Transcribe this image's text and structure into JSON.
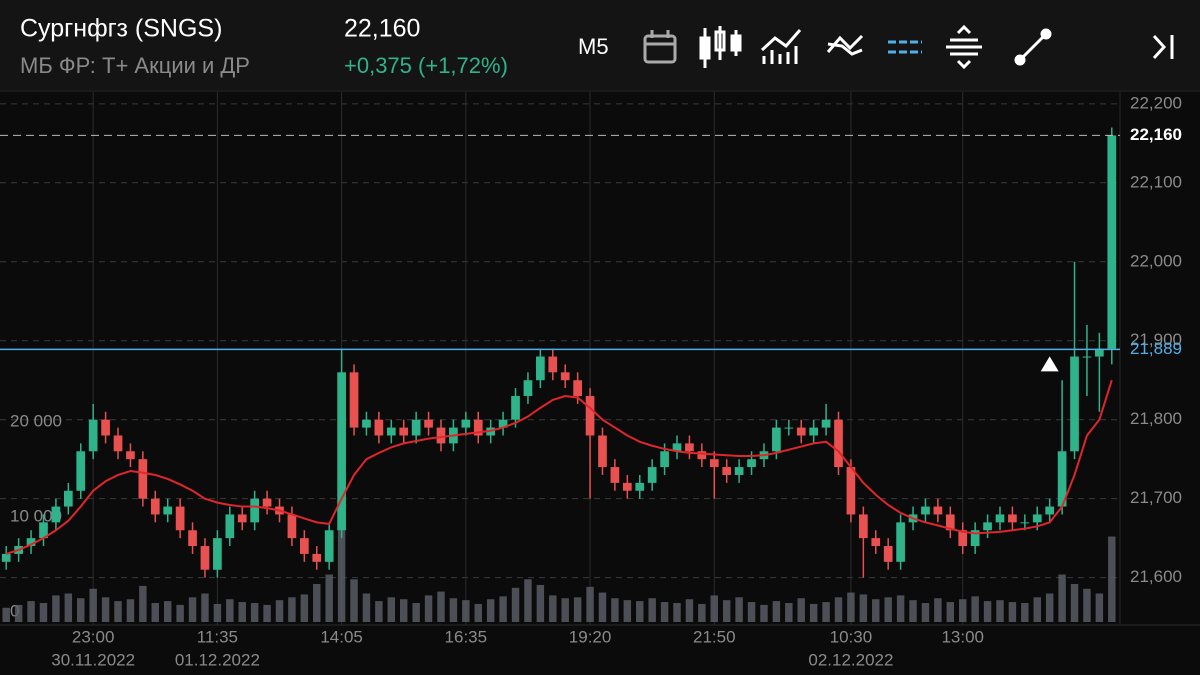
{
  "header": {
    "title": "Сургнфгз (SNGS)",
    "subtitle": "МБ ФР: Т+ Акции и ДР",
    "price": "22,160",
    "change": "+0,375 (+1,72%)",
    "timeframe": "М5"
  },
  "chart_data": {
    "type": "candlestick",
    "categories": [
      null,
      null,
      null,
      null,
      null,
      null,
      null,
      "23:00",
      null,
      null,
      null,
      null,
      null,
      null,
      null,
      null,
      null,
      "11:35",
      null,
      null,
      null,
      null,
      null,
      null,
      null,
      null,
      null,
      "14:05",
      null,
      null,
      null,
      null,
      null,
      null,
      null,
      null,
      null,
      "16:35",
      null,
      null,
      null,
      null,
      null,
      null,
      null,
      null,
      null,
      "19:20",
      null,
      null,
      null,
      null,
      null,
      null,
      null,
      null,
      null,
      "21:50",
      null,
      null,
      null,
      null,
      null,
      null,
      null,
      null,
      null,
      null,
      "10:30",
      null,
      null,
      null,
      null,
      null,
      null,
      null,
      null,
      "13:00",
      null,
      null,
      null,
      null,
      null,
      null,
      null,
      null,
      null,
      null,
      null
    ],
    "dates": [
      null,
      null,
      null,
      null,
      null,
      null,
      null,
      "30.11.2022",
      null,
      null,
      null,
      null,
      null,
      null,
      null,
      null,
      null,
      "01.12.2022",
      null,
      null,
      null,
      null,
      null,
      null,
      null,
      null,
      null,
      null,
      null,
      null,
      null,
      null,
      null,
      null,
      null,
      null,
      null,
      null,
      null,
      null,
      null,
      null,
      null,
      null,
      null,
      null,
      null,
      null,
      null,
      null,
      null,
      null,
      null,
      null,
      null,
      null,
      null,
      null,
      null,
      null,
      null,
      null,
      null,
      null,
      null,
      null,
      null,
      null,
      "02.12.2022",
      null,
      null,
      null,
      null,
      null,
      null,
      null,
      null,
      null,
      null,
      null,
      null,
      null,
      null,
      null,
      null,
      null,
      null,
      null,
      null,
      null
    ],
    "open": [
      21620,
      21630,
      21640,
      21650,
      21670,
      21690,
      21710,
      21760,
      21800,
      21780,
      21760,
      21750,
      21700,
      21680,
      21690,
      21660,
      21640,
      21610,
      21650,
      21680,
      21670,
      21700,
      21690,
      21680,
      21650,
      21630,
      21620,
      21660,
      21860,
      21790,
      21800,
      21780,
      21790,
      21780,
      21800,
      21790,
      21770,
      21790,
      21800,
      21780,
      21790,
      21800,
      21830,
      21850,
      21880,
      21860,
      21850,
      21830,
      21780,
      21740,
      21720,
      21710,
      21720,
      21740,
      21760,
      21770,
      21760,
      21750,
      21740,
      21730,
      21740,
      21750,
      21760,
      21790,
      21790,
      21780,
      21790,
      21800,
      21740,
      21680,
      21650,
      21640,
      21620,
      21670,
      21680,
      21690,
      21680,
      21660,
      21640,
      21660,
      21670,
      21680,
      21670,
      21670,
      21680,
      21690,
      21760,
      21880,
      21880,
      21890
    ],
    "high": [
      21640,
      21650,
      21660,
      21680,
      21700,
      21720,
      21770,
      21820,
      21810,
      21790,
      21770,
      21760,
      21710,
      21700,
      21700,
      21670,
      21650,
      21660,
      21690,
      21690,
      21710,
      21710,
      21700,
      21690,
      21660,
      21640,
      21670,
      21890,
      21870,
      21810,
      21810,
      21800,
      21800,
      21810,
      21810,
      21800,
      21800,
      21810,
      21810,
      21800,
      21810,
      21840,
      21860,
      21890,
      21890,
      21870,
      21860,
      21840,
      21790,
      21750,
      21730,
      21730,
      21750,
      21770,
      21780,
      21780,
      21770,
      21760,
      21750,
      21750,
      21760,
      21770,
      21800,
      21800,
      21800,
      21800,
      21820,
      21810,
      21750,
      21690,
      21660,
      21650,
      21680,
      21690,
      21700,
      21700,
      21690,
      21670,
      21670,
      21680,
      21690,
      21690,
      21680,
      21690,
      21700,
      21850,
      22000,
      21920,
      21910,
      22170
    ],
    "low": [
      21610,
      21620,
      21630,
      21640,
      21660,
      21680,
      21700,
      21750,
      21770,
      21750,
      21740,
      21690,
      21670,
      21670,
      21650,
      21630,
      21600,
      21600,
      21640,
      21660,
      21660,
      21680,
      21670,
      21640,
      21620,
      21610,
      21610,
      21650,
      21780,
      21780,
      21770,
      21770,
      21770,
      21770,
      21780,
      21760,
      21760,
      21780,
      21770,
      21770,
      21780,
      21790,
      21820,
      21840,
      21850,
      21840,
      21820,
      21700,
      21730,
      21710,
      21700,
      21700,
      21710,
      21730,
      21750,
      21750,
      21740,
      21700,
      21720,
      21720,
      21730,
      21740,
      21750,
      21780,
      21770,
      21770,
      21780,
      21730,
      21670,
      21600,
      21630,
      21610,
      21610,
      21660,
      21670,
      21670,
      21650,
      21630,
      21630,
      21650,
      21660,
      21660,
      21660,
      21660,
      21670,
      21680,
      21750,
      21830,
      21810,
      21870
    ],
    "close": [
      21630,
      21640,
      21650,
      21670,
      21690,
      21710,
      21760,
      21800,
      21780,
      21760,
      21750,
      21700,
      21680,
      21690,
      21660,
      21640,
      21610,
      21650,
      21680,
      21670,
      21700,
      21690,
      21680,
      21650,
      21630,
      21620,
      21660,
      21860,
      21790,
      21800,
      21780,
      21790,
      21780,
      21800,
      21790,
      21770,
      21790,
      21800,
      21780,
      21790,
      21800,
      21830,
      21850,
      21880,
      21860,
      21850,
      21830,
      21780,
      21740,
      21720,
      21710,
      21720,
      21740,
      21760,
      21770,
      21760,
      21750,
      21740,
      21730,
      21740,
      21750,
      21760,
      21790,
      21790,
      21780,
      21790,
      21800,
      21740,
      21680,
      21650,
      21640,
      21620,
      21670,
      21680,
      21690,
      21680,
      21660,
      21640,
      21660,
      21670,
      21680,
      21670,
      21670,
      21680,
      21690,
      21760,
      21880,
      21880,
      21890,
      22160
    ],
    "up_color": "#2fb38a",
    "down_color": "#e8514f",
    "ma": {
      "color": "#e0262a",
      "values": [
        21630,
        21635,
        21642,
        21650,
        21660,
        21672,
        21690,
        21710,
        21722,
        21730,
        21735,
        21733,
        21730,
        21725,
        21718,
        21710,
        21700,
        21695,
        21692,
        21690,
        21690,
        21688,
        21685,
        21680,
        21675,
        21670,
        21668,
        21700,
        21730,
        21750,
        21758,
        21765,
        21770,
        21773,
        21776,
        21778,
        21780,
        21782,
        21784,
        21786,
        21790,
        21796,
        21804,
        21815,
        21825,
        21830,
        21828,
        21815,
        21800,
        21790,
        21780,
        21772,
        21767,
        21763,
        21760,
        21758,
        21757,
        21756,
        21755,
        21754,
        21754,
        21755,
        21758,
        21762,
        21766,
        21770,
        21772,
        21760,
        21740,
        21720,
        21705,
        21692,
        21682,
        21675,
        21670,
        21666,
        21662,
        21658,
        21656,
        21657,
        21658,
        21660,
        21662,
        21665,
        21670,
        21690,
        21730,
        21780,
        21800,
        21850
      ]
    },
    "volume": {
      "color": "#5c6069",
      "values": [
        1500,
        1800,
        2200,
        2000,
        2800,
        3000,
        2500,
        3500,
        2600,
        2200,
        2400,
        3800,
        2000,
        2200,
        1800,
        2600,
        3000,
        1900,
        2400,
        2100,
        2000,
        1800,
        2300,
        2600,
        2900,
        4000,
        5000,
        10000,
        4500,
        3000,
        2200,
        2600,
        2400,
        2000,
        2800,
        3200,
        2500,
        2300,
        1900,
        2400,
        2700,
        3600,
        4500,
        3900,
        2800,
        2500,
        2600,
        3700,
        3100,
        2500,
        2300,
        2200,
        2500,
        2100,
        2000,
        2400,
        1900,
        2800,
        2300,
        2600,
        2100,
        1800,
        2200,
        2000,
        2500,
        1900,
        2100,
        2600,
        3100,
        2900,
        2400,
        2600,
        2800,
        2300,
        2000,
        2500,
        2100,
        2400,
        2700,
        2200,
        2300,
        2100,
        2000,
        2600,
        3000,
        5000,
        4000,
        3500,
        3000,
        9000
      ],
      "ylim": [
        0,
        55800
      ],
      "yticks": [
        0,
        {
          "value": 10000,
          "label": "10 000"
        },
        {
          "value": 20000,
          "label": "20 000"
        }
      ]
    },
    "ylim": [
      21540,
      22215
    ],
    "yticks": [
      {
        "value": 21600,
        "label": "21,600"
      },
      {
        "value": 21700,
        "label": "21,700"
      },
      {
        "value": 21800,
        "label": "21,800"
      },
      {
        "value": 21900,
        "label": "21,900"
      },
      {
        "value": 22000,
        "label": "22,000"
      },
      {
        "value": 22100,
        "label": "22,100"
      },
      {
        "value": 22200,
        "label": "22,200"
      }
    ],
    "last_price": {
      "value": 22160,
      "label": "22,160"
    },
    "level": {
      "value": 21889,
      "label": "21,889",
      "color": "#4fb0e8"
    },
    "marker": {
      "candle": 85,
      "value": 21870
    },
    "grid": true
  }
}
